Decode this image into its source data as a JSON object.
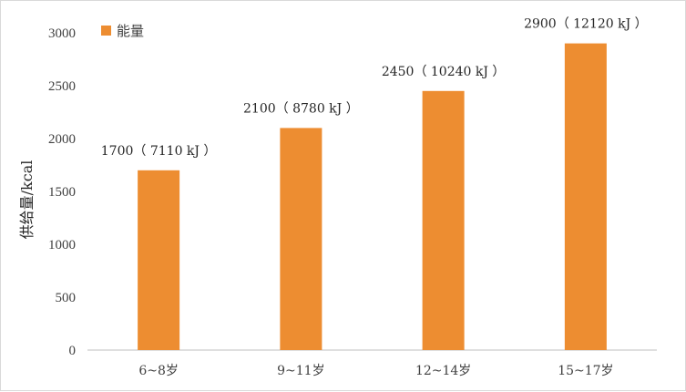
{
  "chart_data": {
    "type": "bar",
    "categories": [
      "6~8岁",
      "9~11岁",
      "12~14岁",
      "15~17岁"
    ],
    "series": [
      {
        "name": "能量",
        "values": [
          1700,
          2100,
          2450,
          2900
        ],
        "color": "#ED8D31"
      }
    ],
    "data_labels": [
      "1700（ 7110 kJ ）",
      "2100（ 8780 kJ ）",
      "2450（ 10240 kJ ）",
      "2900（ 12120 kJ ）"
    ],
    "ylabel": "供给量/kcal",
    "xlabel": "",
    "ylim": [
      0,
      3000
    ],
    "yticks": [
      0,
      500,
      1000,
      1500,
      2000,
      2500,
      3000
    ],
    "grid": false,
    "legend_position": "top-left"
  }
}
